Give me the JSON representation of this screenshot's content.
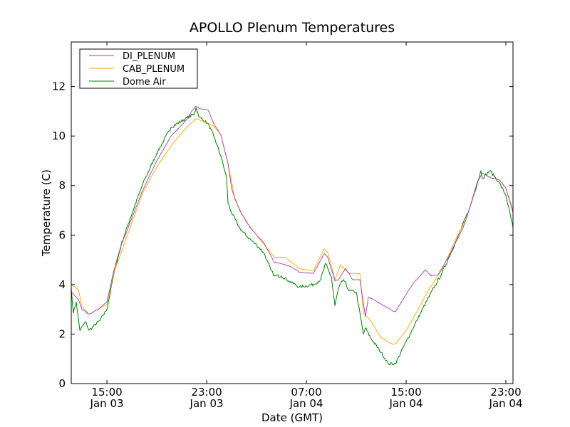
{
  "chart_data": {
    "type": "line",
    "title": "APOLLO Plenum Temperatures",
    "xlabel": "Date (GMT)",
    "ylabel": "Temperature (C)",
    "x_units": "hours since Jan 03 00:00 GMT",
    "xlim": [
      12.14,
      47.57
    ],
    "ylim": [
      0,
      13.8
    ],
    "grid": false,
    "legend_position": "top-left",
    "yticks": [
      0,
      2,
      4,
      6,
      8,
      10,
      12
    ],
    "xticks": [
      {
        "value": 15,
        "label": "15:00",
        "sublabel": "Jan 03"
      },
      {
        "value": 23,
        "label": "23:00",
        "sublabel": "Jan 03"
      },
      {
        "value": 31,
        "label": "07:00",
        "sublabel": "Jan 04"
      },
      {
        "value": 39,
        "label": "15:00",
        "sublabel": "Jan 04"
      },
      {
        "value": 47,
        "label": "23:00",
        "sublabel": "Jan 04"
      }
    ],
    "series": [
      {
        "name": "DI_PLENUM",
        "color": "#a040b0",
        "x": [
          12.14,
          12.71,
          13.0,
          13.57,
          14.43,
          15.0,
          15.57,
          16.14,
          16.71,
          17.86,
          19.0,
          20.14,
          21.29,
          21.86,
          22.14,
          22.43,
          23.11,
          23.57,
          24.14,
          24.71,
          25.0,
          25.29,
          25.69,
          26.14,
          26.43,
          27.0,
          27.57,
          28.43,
          29.0,
          29.86,
          30.43,
          31.57,
          32.43,
          32.71,
          33.29,
          33.57,
          34.14,
          34.71,
          35.29,
          35.74,
          35.97,
          36.71,
          37.86,
          38.14,
          39.0,
          39.57,
          40.54,
          41.0,
          41.57,
          42.43,
          43.57,
          44.14,
          44.71,
          45.11,
          45.86,
          46.43,
          47.0,
          47.57
        ],
        "values": [
          3.7,
          3.4,
          3.0,
          2.8,
          3.05,
          3.3,
          4.6,
          5.6,
          6.3,
          7.8,
          9.0,
          10.0,
          10.6,
          11.05,
          11.2,
          11.1,
          11.05,
          10.5,
          10.05,
          8.9,
          7.9,
          7.45,
          6.95,
          6.6,
          6.35,
          6.0,
          5.7,
          4.9,
          4.85,
          4.7,
          4.5,
          4.45,
          5.25,
          5.1,
          4.15,
          4.2,
          4.65,
          4.2,
          4.2,
          2.7,
          3.5,
          3.3,
          2.95,
          2.9,
          3.6,
          4.05,
          4.6,
          4.35,
          4.4,
          5.15,
          6.3,
          7.15,
          8.15,
          8.5,
          8.3,
          8.25,
          7.9,
          6.9
        ]
      },
      {
        "name": "CAB_PLENUM",
        "color": "#ffa500",
        "x": [
          12.14,
          12.71,
          13.0,
          13.57,
          15.0,
          15.57,
          17.86,
          19.0,
          20.14,
          21.29,
          22.14,
          23.0,
          23.57,
          24.14,
          24.71,
          25.29,
          26.14,
          27.0,
          28.43,
          29.29,
          30.43,
          31.57,
          32.43,
          32.71,
          33.29,
          33.74,
          34.43,
          35.29,
          35.57,
          36.14,
          37.0,
          37.86,
          38.14,
          39.0,
          39.86,
          40.71,
          41.86,
          43.0,
          43.86,
          44.71,
          45.11,
          45.86,
          46.43,
          47.0,
          47.57
        ],
        "values": [
          4.0,
          3.8,
          3.1,
          2.8,
          3.2,
          4.5,
          7.7,
          8.75,
          9.6,
          10.3,
          10.7,
          10.55,
          10.4,
          10.05,
          8.9,
          7.4,
          6.55,
          6.0,
          5.1,
          5.1,
          4.65,
          4.55,
          5.45,
          5.3,
          4.2,
          4.8,
          4.45,
          4.45,
          2.85,
          2.55,
          1.85,
          1.6,
          1.6,
          2.15,
          2.9,
          3.7,
          4.6,
          5.85,
          6.7,
          8.15,
          8.5,
          8.3,
          8.25,
          7.9,
          7.0
        ]
      },
      {
        "name": "Dome Air",
        "color": "#008000",
        "x": [
          12.14,
          12.31,
          12.54,
          12.83,
          13.29,
          13.57,
          14.43,
          15.0,
          15.57,
          16.14,
          16.71,
          17.86,
          19.0,
          20.14,
          21.29,
          22.03,
          22.14,
          22.43,
          23.11,
          23.57,
          24.14,
          24.6,
          24.71,
          25.0,
          25.57,
          25.86,
          26.43,
          27.0,
          27.57,
          28.14,
          28.43,
          29.0,
          29.57,
          30.43,
          31.57,
          32.14,
          32.54,
          33.0,
          33.29,
          33.57,
          33.97,
          34.43,
          35.0,
          35.57,
          35.74,
          36.14,
          37.0,
          37.57,
          38.14,
          39.0,
          39.86,
          40.71,
          41.86,
          43.0,
          44.14,
          45.0,
          45.11,
          45.71,
          46.43,
          47.0,
          47.57
        ],
        "values": [
          3.85,
          2.85,
          3.3,
          2.15,
          2.5,
          2.15,
          2.55,
          3.0,
          4.45,
          5.6,
          6.45,
          8.05,
          9.3,
          10.35,
          10.7,
          10.9,
          11.15,
          10.75,
          10.5,
          10.0,
          9.2,
          8.3,
          7.3,
          6.9,
          6.35,
          6.15,
          5.85,
          5.6,
          5.3,
          4.6,
          4.35,
          4.35,
          4.15,
          3.9,
          4.0,
          4.2,
          4.85,
          4.3,
          3.15,
          3.85,
          4.2,
          3.75,
          3.7,
          2.0,
          2.25,
          1.85,
          1.25,
          0.8,
          0.8,
          1.7,
          2.55,
          3.4,
          4.45,
          5.75,
          7.15,
          8.6,
          8.3,
          8.6,
          8.15,
          7.6,
          6.3
        ]
      }
    ]
  }
}
